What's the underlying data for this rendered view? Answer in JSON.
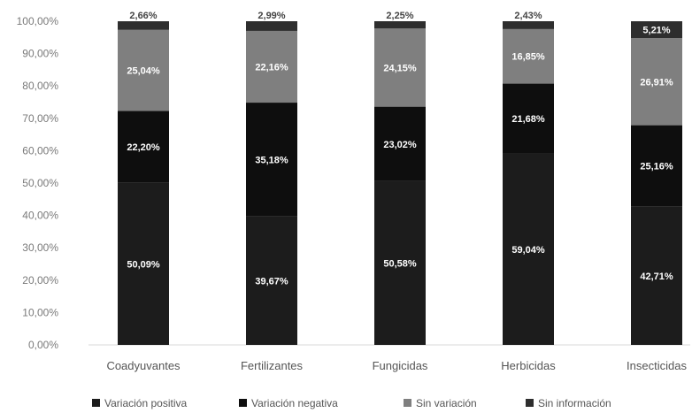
{
  "chart_data": {
    "type": "bar",
    "stacked": true,
    "categories": [
      "Coadyuvantes",
      "Fertilizantes",
      "Fungicidas",
      "Herbicidas",
      "Insecticidas"
    ],
    "series": [
      {
        "name": "Variación positiva",
        "color": "#1c1c1c",
        "values": [
          50.09,
          39.67,
          50.58,
          59.04,
          42.71
        ],
        "labels": [
          "50,09%",
          "39,67%",
          "50,58%",
          "59,04%",
          "42,71%"
        ]
      },
      {
        "name": "Variación negativa",
        "color": "#0e0e0e",
        "values": [
          22.2,
          35.18,
          23.02,
          21.68,
          25.16
        ],
        "labels": [
          "22,20%",
          "35,18%",
          "23,02%",
          "21,68%",
          "25,16%"
        ]
      },
      {
        "name": "Sin variación",
        "color": "#7f7f7f",
        "values": [
          25.04,
          22.16,
          24.15,
          16.85,
          26.91
        ],
        "labels": [
          "25,04%",
          "22,16%",
          "24,15%",
          "16,85%",
          "26,91%"
        ]
      },
      {
        "name": "Sin información",
        "color": "#2e2e2e",
        "values": [
          2.66,
          2.99,
          2.25,
          2.43,
          5.21
        ],
        "labels": [
          "2,66%",
          "2,99%",
          "2,25%",
          "2,43%",
          "5,21%"
        ]
      }
    ],
    "yticks": [
      "0,00%",
      "10,00%",
      "20,00%",
      "30,00%",
      "40,00%",
      "50,00%",
      "60,00%",
      "70,00%",
      "80,00%",
      "90,00%",
      "100,00%"
    ],
    "ylim": [
      0,
      100
    ],
    "legend_position": "bottom",
    "grid": false
  }
}
